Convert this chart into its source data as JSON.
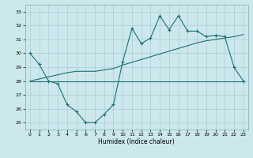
{
  "xlabel": "Humidex (Indice chaleur)",
  "xlim": [
    -0.5,
    23.5
  ],
  "ylim": [
    24.5,
    33.5
  ],
  "xticks": [
    0,
    1,
    2,
    3,
    4,
    5,
    6,
    7,
    8,
    9,
    10,
    11,
    12,
    13,
    14,
    15,
    16,
    17,
    18,
    19,
    20,
    21,
    22,
    23
  ],
  "yticks": [
    25,
    26,
    27,
    28,
    29,
    30,
    31,
    32,
    33
  ],
  "bg_color": "#cce8ec",
  "grid_color": "#aacdd4",
  "line_color": "#1a7070",
  "line1_y": [
    30.0,
    29.2,
    28.0,
    27.8,
    26.3,
    25.8,
    25.0,
    25.0,
    25.6,
    26.3,
    29.4,
    31.8,
    30.7,
    31.1,
    32.7,
    31.7,
    32.7,
    31.6,
    31.6,
    31.2,
    31.3,
    31.2,
    29.0,
    28.0
  ],
  "line2_y": [
    28.0,
    28.0,
    28.0,
    28.0,
    28.0,
    28.0,
    28.0,
    28.0,
    28.0,
    28.0,
    28.0,
    28.0,
    28.0,
    28.0,
    28.0,
    28.0,
    28.0,
    28.0,
    28.0,
    28.0,
    28.0,
    28.0,
    28.0,
    28.0
  ],
  "line3_y": [
    28.0,
    28.15,
    28.3,
    28.45,
    28.6,
    28.7,
    28.7,
    28.7,
    28.8,
    28.9,
    29.15,
    29.35,
    29.55,
    29.75,
    29.95,
    30.15,
    30.35,
    30.55,
    30.75,
    30.9,
    31.0,
    31.1,
    31.2,
    31.35
  ]
}
